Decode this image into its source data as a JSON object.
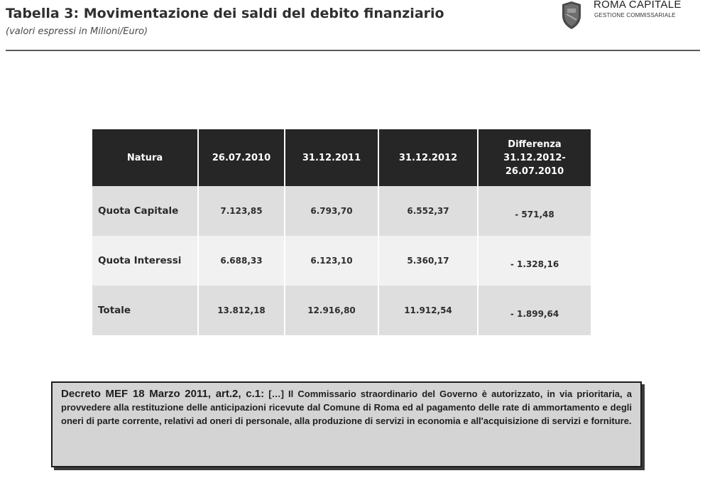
{
  "header": {
    "title": "Tabella 3: Movimentazione dei saldi del debito finanziario",
    "subtitle": "(valori espressi in Milioni/Euro)",
    "logo": {
      "name": "ROMA CAPITALE",
      "sub": "GESTIONE COMMISSARIALE",
      "icon": "roma-shield-icon",
      "colors": {
        "shield": "#4a4a4a",
        "shield_light": "#8a8a8a"
      }
    }
  },
  "table": {
    "headers": {
      "natura": "Natura",
      "d1": "26.07.2010",
      "d2": "31.12.2011",
      "d3": "31.12.2012",
      "diff_1": "Differenza",
      "diff_2": "31.12.2012-",
      "diff_3": "26.07.2010"
    },
    "rows": [
      {
        "label": "Quota Capitale",
        "v1": "7.123,85",
        "v2": "6.793,70",
        "v3": "6.552,37",
        "diff": "- 571,48"
      },
      {
        "label": "Quota Interessi",
        "v1": "6.688,33",
        "v2": "6.123,10",
        "v3": "5.360,17",
        "diff": "- 1.328,16"
      },
      {
        "label": "Totale",
        "v1": "13.812,18",
        "v2": "12.916,80",
        "v3": "11.912,54",
        "diff": "- 1.899,64"
      }
    ],
    "colors": {
      "header_bg": "#262626",
      "row_dark": "#dedede",
      "row_light": "#f1f1f1"
    }
  },
  "decree": {
    "lead": "Decreto MEF 18 Marzo 2011, art.2, c.1:",
    "body": " […] Il Commissario straordinario del Governo è autorizzato, in via prioritaria, a provvedere alla restituzione delle anticipazioni ricevute dal Comune di Roma ed al pagamento delle rate di ammortamento e degli oneri di parte corrente, relativi ad oneri di personale, alla produzione di servizi in economia e all'acquisizione di servizi e forniture."
  }
}
